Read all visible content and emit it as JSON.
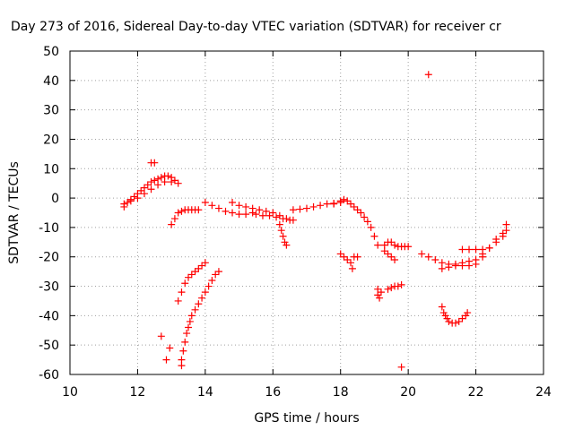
{
  "chart_data": {
    "type": "scatter",
    "title": "Day 273 of 2016, Sidereal Day-to-day VTEC variation (SDTVAR) for receiver cr",
    "xlabel": "GPS time / hours",
    "ylabel": "SDTVAR / TECUs",
    "xlim": [
      10,
      24
    ],
    "ylim": [
      -60,
      50
    ],
    "xticks": [
      10,
      12,
      14,
      16,
      18,
      20,
      22,
      24
    ],
    "yticks": [
      -60,
      -50,
      -40,
      -30,
      -20,
      -10,
      0,
      10,
      20,
      30,
      40,
      50
    ],
    "x_tick_labels": [
      "10",
      "12",
      "14",
      "16",
      "18",
      "20",
      "22",
      "24"
    ],
    "y_tick_labels": [
      "-60",
      "-50",
      "-40",
      "-30",
      "-20",
      "-10",
      "0",
      "10",
      "20",
      "30",
      "40",
      "50"
    ],
    "grid": true,
    "marker": "+",
    "color": "#ff0000",
    "series": [
      {
        "points": [
          [
            11.6,
            -3
          ],
          [
            11.7,
            -1.5
          ],
          [
            11.8,
            -0.5
          ],
          [
            11.9,
            0.5
          ],
          [
            12.0,
            1.5
          ],
          [
            12.1,
            2.5
          ],
          [
            12.2,
            3.5
          ],
          [
            12.3,
            4.5
          ],
          [
            12.4,
            5.5
          ],
          [
            12.5,
            6.0
          ],
          [
            12.6,
            6.5
          ],
          [
            12.7,
            7.0
          ],
          [
            12.8,
            7.5
          ],
          [
            12.9,
            7.5
          ],
          [
            13.0,
            7.0
          ],
          [
            13.1,
            6.0
          ],
          [
            13.2,
            5.0
          ],
          [
            11.6,
            -2
          ],
          [
            11.8,
            -1
          ],
          [
            12.0,
            0
          ],
          [
            12.2,
            1.5
          ],
          [
            12.4,
            3
          ],
          [
            12.6,
            4.5
          ],
          [
            12.8,
            5.5
          ],
          [
            13.0,
            5.5
          ],
          [
            12.4,
            12
          ],
          [
            12.5,
            12
          ],
          [
            13.0,
            -9
          ],
          [
            13.1,
            -7
          ],
          [
            13.2,
            -5
          ],
          [
            13.3,
            -4.5
          ],
          [
            13.4,
            -4
          ],
          [
            13.5,
            -4
          ],
          [
            13.6,
            -4
          ],
          [
            13.7,
            -4
          ],
          [
            13.8,
            -4
          ],
          [
            13.3,
            -57
          ],
          [
            13.3,
            -55
          ],
          [
            13.35,
            -52
          ],
          [
            13.4,
            -49
          ],
          [
            13.45,
            -46
          ],
          [
            13.5,
            -44
          ],
          [
            13.55,
            -42
          ],
          [
            13.6,
            -40
          ],
          [
            13.7,
            -38
          ],
          [
            13.8,
            -36
          ],
          [
            13.9,
            -34
          ],
          [
            14.0,
            -32
          ],
          [
            14.1,
            -30
          ],
          [
            14.2,
            -28
          ],
          [
            14.3,
            -26
          ],
          [
            14.4,
            -25
          ],
          [
            13.2,
            -35
          ],
          [
            13.3,
            -32
          ],
          [
            13.4,
            -29
          ],
          [
            13.5,
            -27
          ],
          [
            13.6,
            -26
          ],
          [
            13.7,
            -25
          ],
          [
            13.8,
            -24
          ],
          [
            13.9,
            -23
          ],
          [
            14.0,
            -22
          ],
          [
            12.7,
            -47
          ],
          [
            12.85,
            -55
          ],
          [
            12.95,
            -51
          ],
          [
            14.0,
            -1.5
          ],
          [
            14.2,
            -2.5
          ],
          [
            14.4,
            -3.5
          ],
          [
            14.6,
            -4.5
          ],
          [
            14.8,
            -5
          ],
          [
            15.0,
            -5.5
          ],
          [
            15.2,
            -5.5
          ],
          [
            15.4,
            -5
          ],
          [
            14.8,
            -1.5
          ],
          [
            15.0,
            -2.5
          ],
          [
            15.2,
            -3
          ],
          [
            15.4,
            -3.5
          ],
          [
            15.6,
            -4
          ],
          [
            15.8,
            -4.5
          ],
          [
            16.0,
            -5
          ],
          [
            16.2,
            -6
          ],
          [
            16.4,
            -7
          ],
          [
            16.6,
            -7.5
          ],
          [
            15.5,
            -5.5
          ],
          [
            15.7,
            -6
          ],
          [
            15.9,
            -6
          ],
          [
            16.1,
            -6.5
          ],
          [
            16.3,
            -7
          ],
          [
            16.5,
            -7.5
          ],
          [
            16.2,
            -9
          ],
          [
            16.25,
            -11
          ],
          [
            16.3,
            -13
          ],
          [
            16.35,
            -15
          ],
          [
            16.4,
            -16
          ],
          [
            16.6,
            -4
          ],
          [
            16.8,
            -3.8
          ],
          [
            17.0,
            -3.5
          ],
          [
            17.2,
            -3
          ],
          [
            17.4,
            -2.5
          ],
          [
            17.6,
            -2
          ],
          [
            17.8,
            -1.8
          ],
          [
            18.0,
            -1.5
          ],
          [
            17.8,
            -2
          ],
          [
            18.0,
            -1
          ],
          [
            18.1,
            -0.5
          ],
          [
            18.2,
            -1
          ],
          [
            18.3,
            -2
          ],
          [
            18.4,
            -3
          ],
          [
            18.5,
            -4
          ],
          [
            18.6,
            -5
          ],
          [
            18.7,
            -6.5
          ],
          [
            18.8,
            -8
          ],
          [
            18.9,
            -10
          ],
          [
            19.0,
            -13
          ],
          [
            19.1,
            -16
          ],
          [
            18.0,
            -19
          ],
          [
            18.1,
            -20
          ],
          [
            18.2,
            -21
          ],
          [
            18.3,
            -22
          ],
          [
            18.35,
            -24
          ],
          [
            18.4,
            -20
          ],
          [
            18.5,
            -20
          ],
          [
            19.3,
            -16
          ],
          [
            19.4,
            -15
          ],
          [
            19.5,
            -15
          ],
          [
            19.6,
            -16
          ],
          [
            19.7,
            -16.5
          ],
          [
            19.8,
            -16.5
          ],
          [
            19.9,
            -16.5
          ],
          [
            20.0,
            -16.5
          ],
          [
            19.3,
            -18
          ],
          [
            19.4,
            -19
          ],
          [
            19.5,
            -20
          ],
          [
            19.6,
            -21
          ],
          [
            19.1,
            -31
          ],
          [
            19.1,
            -33
          ],
          [
            19.15,
            -34
          ],
          [
            19.2,
            -32
          ],
          [
            19.4,
            -31
          ],
          [
            19.5,
            -30.5
          ],
          [
            19.6,
            -30
          ],
          [
            19.7,
            -30
          ],
          [
            19.8,
            -29.5
          ],
          [
            19.8,
            -57.5
          ],
          [
            20.6,
            42
          ],
          [
            20.4,
            -19
          ],
          [
            20.6,
            -20
          ],
          [
            20.8,
            -21
          ],
          [
            21.0,
            -22
          ],
          [
            21.2,
            -22.5
          ],
          [
            21.4,
            -22.5
          ],
          [
            21.6,
            -22
          ],
          [
            21.8,
            -21.5
          ],
          [
            22.0,
            -21
          ],
          [
            22.2,
            -19
          ],
          [
            22.4,
            -17
          ],
          [
            22.6,
            -15
          ],
          [
            22.8,
            -13
          ],
          [
            22.9,
            -11
          ],
          [
            21.0,
            -24
          ],
          [
            21.2,
            -23.5
          ],
          [
            21.4,
            -23
          ],
          [
            21.6,
            -23
          ],
          [
            21.8,
            -23
          ],
          [
            22.0,
            -22.5
          ],
          [
            22.2,
            -20
          ],
          [
            22.4,
            -17
          ],
          [
            22.6,
            -14
          ],
          [
            22.8,
            -12
          ],
          [
            22.9,
            -9
          ],
          [
            21.6,
            -17.5
          ],
          [
            21.8,
            -17.5
          ],
          [
            22.0,
            -17.5
          ],
          [
            22.2,
            -17.5
          ],
          [
            21.0,
            -37
          ],
          [
            21.05,
            -39
          ],
          [
            21.1,
            -40
          ],
          [
            21.15,
            -41
          ],
          [
            21.2,
            -42
          ],
          [
            21.3,
            -42.5
          ],
          [
            21.4,
            -42.5
          ],
          [
            21.5,
            -42
          ],
          [
            21.6,
            -41
          ],
          [
            21.7,
            -40
          ],
          [
            21.75,
            -39
          ]
        ]
      }
    ]
  }
}
